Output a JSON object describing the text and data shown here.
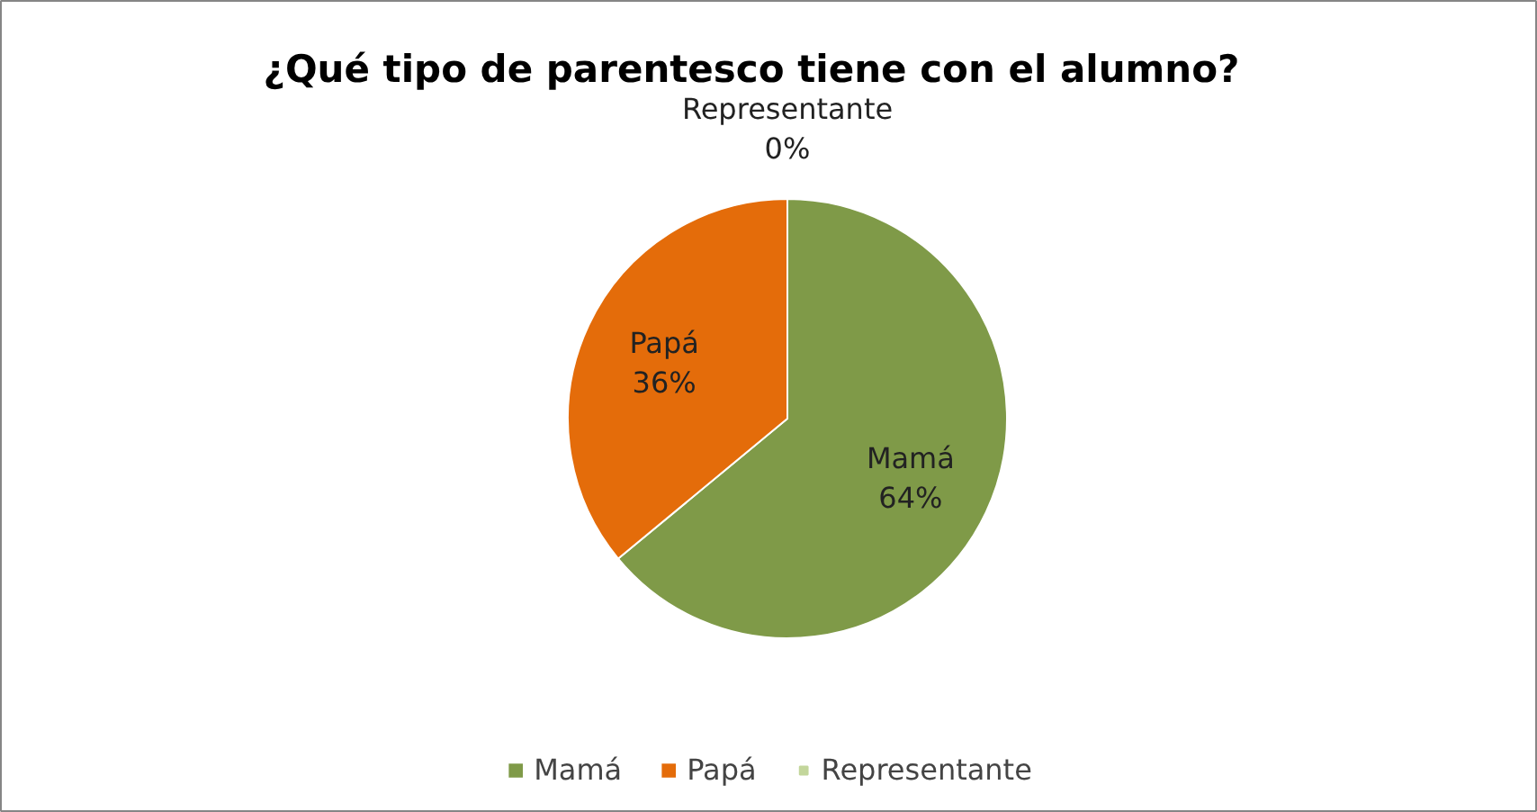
{
  "chart_data": {
    "type": "pie",
    "title": "¿Qué tipo de parentesco tiene con el alumno?",
    "categories": [
      "Mamá",
      "Papá",
      "Representante"
    ],
    "values": [
      64,
      36,
      0
    ],
    "colors": [
      "#7f9a48",
      "#e46c0a",
      "#c3d69b"
    ],
    "value_labels": [
      "64%",
      "36%",
      "0%"
    ],
    "legend": "bottom"
  }
}
